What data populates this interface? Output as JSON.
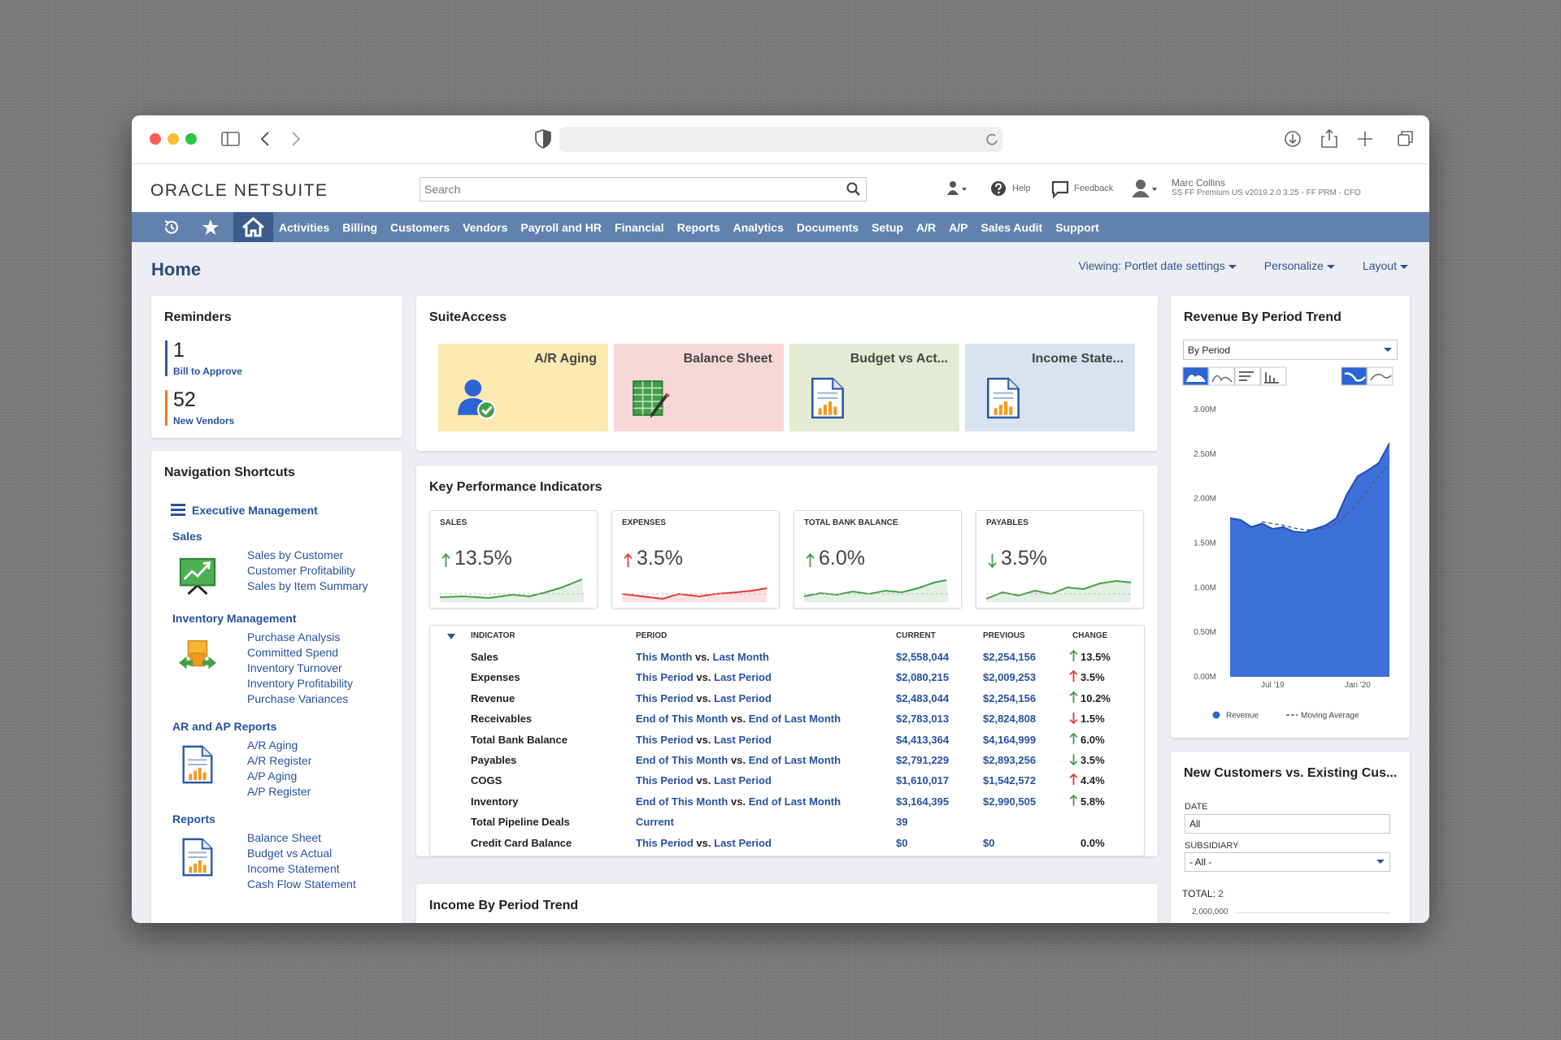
{
  "header": {
    "logo": "ORACLE NETSUITE",
    "search_placeholder": "Search",
    "help": "Help",
    "feedback": "Feedback",
    "user_name": "Marc Collins",
    "user_role": "SS FF Premium US v2019.2.0 3.25 - FF PRM - CFO"
  },
  "nav": {
    "items": [
      "Activities",
      "Billing",
      "Customers",
      "Vendors",
      "Payroll and HR",
      "Financial",
      "Reports",
      "Analytics",
      "Documents",
      "Setup",
      "A/R",
      "A/P",
      "Sales Audit",
      "Support"
    ]
  },
  "page": {
    "title": "Home",
    "viewing": "Viewing: Portlet date settings",
    "personalize": "Personalize",
    "layout": "Layout"
  },
  "reminders": {
    "title": "Reminders",
    "items": [
      {
        "count": 1,
        "label": "Bill to Approve",
        "color": "#2d5aa0"
      },
      {
        "count": 52,
        "label": "New Vendors",
        "color": "#f07b28"
      }
    ]
  },
  "shortcuts": {
    "title": "Navigation Shortcuts",
    "top": "Executive Management",
    "groups": [
      {
        "name": "Sales",
        "links": [
          "Sales by Customer",
          "Customer Profitability",
          "Sales by Item Summary"
        ]
      },
      {
        "name": "Inventory Management",
        "links": [
          "Purchase Analysis",
          "Committed Spend",
          "Inventory Turnover",
          "Inventory Profitability",
          "Purchase Variances"
        ]
      },
      {
        "name": "AR and AP Reports",
        "links": [
          "A/R Aging",
          "A/R Register",
          "A/P Aging",
          "A/P Register"
        ]
      },
      {
        "name": "Reports",
        "links": [
          "Balance Sheet",
          "Budget vs Actual",
          "Income Statement",
          "Cash Flow Statement"
        ]
      }
    ]
  },
  "suiteaccess": {
    "title": "SuiteAccess",
    "tiles": [
      {
        "label": "A/R Aging",
        "color": "#fbe9b0"
      },
      {
        "label": "Balance Sheet",
        "color": "#f8d7d9"
      },
      {
        "label": "Budget vs Act...",
        "color": "#e3ecd2"
      },
      {
        "label": "Income State...",
        "color": "#d9e3ef"
      }
    ]
  },
  "kpi": {
    "title": "Key Performance Indicators",
    "cards": [
      {
        "label": "SALES",
        "change": "13.5%",
        "direction": "up",
        "color": "#43a047"
      },
      {
        "label": "EXPENSES",
        "change": "3.5%",
        "direction": "up",
        "color": "#e53935"
      },
      {
        "label": "TOTAL BANK BALANCE",
        "change": "6.0%",
        "direction": "up",
        "color": "#43a047"
      },
      {
        "label": "PAYABLES",
        "change": "3.5%",
        "direction": "down",
        "color": "#43a047"
      }
    ],
    "table": {
      "columns": [
        "INDICATOR",
        "PERIOD",
        "CURRENT",
        "PREVIOUS",
        "CHANGE"
      ],
      "rows": [
        {
          "indicator": "Sales",
          "period": {
            "from": "This Month",
            "sep": "vs.",
            "to": "Last Month"
          },
          "current": "$2,558,044",
          "previous": "$2,254,156",
          "change": "13.5%",
          "direction": "up",
          "color": "#43a047"
        },
        {
          "indicator": "Expenses",
          "period": {
            "from": "This Period",
            "sep": "vs.",
            "to": "Last Period"
          },
          "current": "$2,080,215",
          "previous": "$2,009,253",
          "change": "3.5%",
          "direction": "up",
          "color": "#e53935"
        },
        {
          "indicator": "Revenue",
          "period": {
            "from": "This Period",
            "sep": "vs.",
            "to": "Last Period"
          },
          "current": "$2,483,044",
          "previous": "$2,254,156",
          "change": "10.2%",
          "direction": "up",
          "color": "#43a047"
        },
        {
          "indicator": "Receivables",
          "period": {
            "from": "End of This Month",
            "sep": "vs.",
            "to": "End of Last Month"
          },
          "current": "$2,783,013",
          "previous": "$2,824,808",
          "change": "1.5%",
          "direction": "down",
          "color": "#e53935"
        },
        {
          "indicator": "Total Bank Balance",
          "period": {
            "from": "This Period",
            "sep": "vs.",
            "to": "Last Period"
          },
          "current": "$4,413,364",
          "previous": "$4,164,999",
          "change": "6.0%",
          "direction": "up",
          "color": "#43a047"
        },
        {
          "indicator": "Payables",
          "period": {
            "from": "End of This Month",
            "sep": "vs.",
            "to": "End of Last Month"
          },
          "current": "$2,791,229",
          "previous": "$2,893,256",
          "change": "3.5%",
          "direction": "down",
          "color": "#43a047"
        },
        {
          "indicator": "COGS",
          "period": {
            "from": "This Period",
            "sep": "vs.",
            "to": "Last Period"
          },
          "current": "$1,610,017",
          "previous": "$1,542,572",
          "change": "4.4%",
          "direction": "up",
          "color": "#e53935"
        },
        {
          "indicator": "Inventory",
          "period": {
            "from": "End of This Month",
            "sep": "vs.",
            "to": "End of Last Month"
          },
          "current": "$3,164,395",
          "previous": "$2,990,505",
          "change": "5.8%",
          "direction": "up",
          "color": "#43a047"
        },
        {
          "indicator": "Total Pipeline Deals",
          "period": {
            "from": "Current"
          },
          "current": "39",
          "previous": null,
          "change": null
        },
        {
          "indicator": "Credit Card Balance",
          "period": {
            "from": "This Period",
            "sep": "vs.",
            "to": "Last Period"
          },
          "current": "$0",
          "previous": "$0",
          "change": "0.0%"
        }
      ]
    }
  },
  "revenue_chart": {
    "type": "area",
    "title": "Revenue By Period Trend",
    "period_select": "By Period",
    "categories": [
      null,
      null,
      null,
      null,
      "Jul '19",
      null,
      null,
      null,
      null,
      null,
      null,
      null,
      "Jan '20",
      null,
      null,
      null
    ],
    "series": [
      {
        "name": "Revenue",
        "color": "#2c64d6",
        "values": [
          1780000,
          1760000,
          1680000,
          1720000,
          1660000,
          1680000,
          1630000,
          1620000,
          1660000,
          1700000,
          1780000,
          2050000,
          2250000,
          2320000,
          2400000,
          2620000
        ]
      },
      {
        "name": "Moving Average",
        "color": "#4a5a78",
        "dashed": true,
        "values": [
          null,
          null,
          null,
          1740000,
          1720000,
          1700000,
          1670000,
          1650000,
          1650000,
          1670000,
          1720000,
          1820000,
          1960000,
          2100000,
          2250000,
          2400000
        ]
      }
    ],
    "ylim": [
      0,
      3000000
    ],
    "yticks": [
      {
        "value": 0,
        "label": "0.00M"
      },
      {
        "value": 500000,
        "label": "0.50M"
      },
      {
        "value": 1000000,
        "label": "1.00M"
      },
      {
        "value": 1500000,
        "label": "1.50M"
      },
      {
        "value": 2000000,
        "label": "2.00M"
      },
      {
        "value": 2500000,
        "label": "2.50M"
      },
      {
        "value": 3000000,
        "label": "3.00M"
      }
    ]
  },
  "new_customers": {
    "title": "New Customers vs. Existing Cus...",
    "date_label": "DATE",
    "date_value": "All",
    "subsidiary_label": "SUBSIDIARY",
    "subsidiary_value": "- All -",
    "total_label": "TOTAL:",
    "total": 2,
    "axis_top": "2,000,000"
  },
  "income_trend": {
    "title": "Income By Period Trend"
  }
}
